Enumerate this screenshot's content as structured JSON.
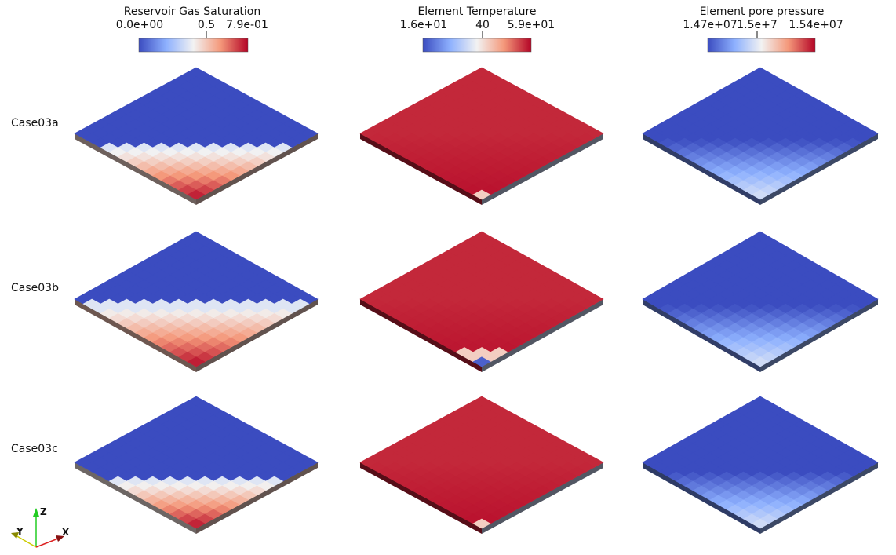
{
  "colorbars": [
    {
      "title": "Reservoir Gas Saturation",
      "ticks": [
        "0.0e+00",
        "0.5",
        "7.9e-01"
      ]
    },
    {
      "title": "Element Temperature",
      "ticks": [
        "1.6e+01",
        "40",
        "5.9e+01"
      ]
    },
    {
      "title": "Element pore pressure",
      "ticks": [
        "1.47e+07",
        "1.5e+7",
        "1.54e+07"
      ]
    }
  ],
  "cases": [
    {
      "label": "Case03a"
    },
    {
      "label": "Case03b"
    },
    {
      "label": "Case03c"
    }
  ],
  "axes": {
    "z": "Z",
    "y": "Y",
    "x": "X"
  },
  "colors": {
    "cool": "#3b4cc0",
    "neutral": "#f2f2f2",
    "warm": "#b40426"
  }
}
